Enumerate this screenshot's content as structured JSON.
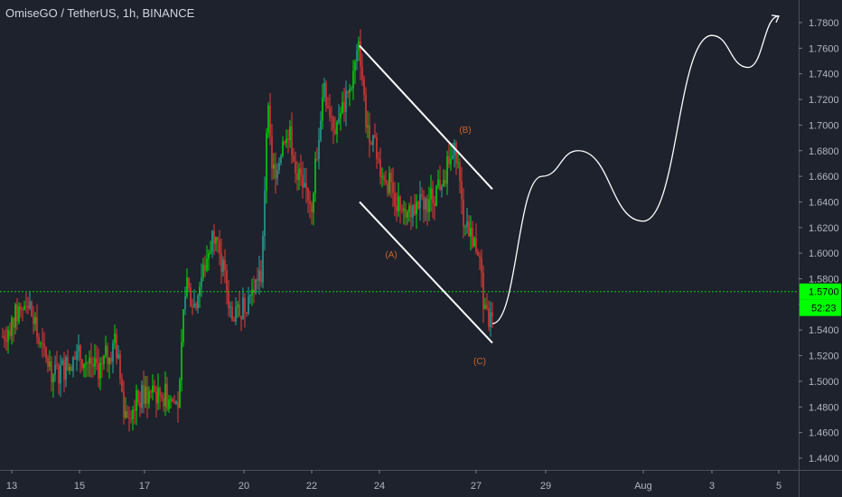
{
  "header": {
    "title": "OmiseGO / TetherUS, 1h, BINANCE"
  },
  "chart_data": {
    "type": "candlestick",
    "symbol": "OmiseGO / TetherUS",
    "interval": "1h",
    "exchange": "BINANCE",
    "y_ticks": [
      "1.4400",
      "1.4600",
      "1.4800",
      "1.5000",
      "1.5200",
      "1.5400",
      "1.5600",
      "1.5800",
      "1.6000",
      "1.6200",
      "1.6400",
      "1.6600",
      "1.6800",
      "1.7000",
      "1.7200",
      "1.7400",
      "1.7600",
      "1.7800"
    ],
    "ylim": [
      1.43,
      1.795
    ],
    "x_ticks": [
      "13",
      "15",
      "17",
      "20",
      "22",
      "24",
      "27",
      "29",
      "Aug",
      "3",
      "5"
    ],
    "current_price": "1.5700",
    "countdown": "52:23",
    "price_line": 1.57,
    "wave_labels": [
      "(A)",
      "(B)",
      "(C)"
    ],
    "colors": {
      "up": "#26a69a",
      "up_bright": "#00e000",
      "down": "#e53935",
      "price_badge": "#00ff00",
      "background": "#1e222d"
    },
    "key_prices": [
      {
        "point": "13",
        "price": 1.535
      },
      {
        "point": "15",
        "price": 1.51
      },
      {
        "point": "17",
        "price": 1.475
      },
      {
        "point": "20",
        "price": 1.72
      },
      {
        "point": "22",
        "price": 1.7
      },
      {
        "point": "23",
        "price": 1.762
      },
      {
        "point": "24",
        "price": 1.64
      },
      {
        "point": "26",
        "price": 1.68
      },
      {
        "point": "27",
        "price": 1.54
      }
    ],
    "channel": {
      "upper_line": [
        [
          "23",
          1.762
        ],
        [
          "27",
          1.65
        ]
      ],
      "lower_line": [
        [
          "23",
          1.64
        ],
        [
          "27",
          1.53
        ]
      ]
    },
    "projection": [
      [
        "27",
        1.545
      ],
      [
        "29",
        1.66
      ],
      [
        "30",
        1.68
      ],
      [
        "Aug",
        1.625
      ],
      [
        "3",
        1.77
      ],
      [
        "4",
        1.745
      ],
      [
        "5",
        1.785
      ]
    ]
  }
}
